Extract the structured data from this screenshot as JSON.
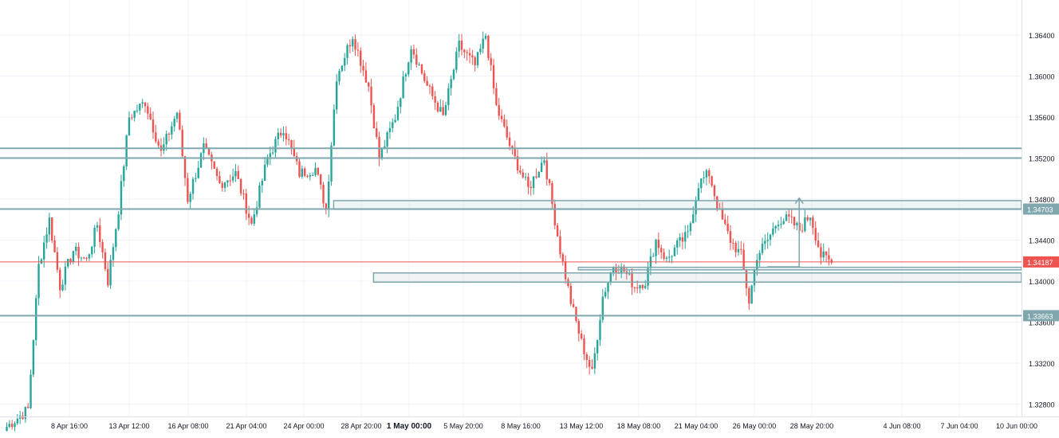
{
  "chart_data": {
    "type": "candlestick",
    "title": "",
    "xlabel": "",
    "ylabel": "",
    "grid": true,
    "ylim": [
      1.325,
      1.3675
    ],
    "y_ticks": [
      "1.36400",
      "1.36000",
      "1.35600",
      "1.35200",
      "1.34800",
      "1.34400",
      "1.34000",
      "1.33600",
      "1.33200",
      "1.32800"
    ],
    "x_ticks": [
      "8 Apr 16:00",
      "13 Apr 12:00",
      "16 Apr 08:00",
      "21 Apr 04:00",
      "24 Apr 00:00",
      "28 Apr 20:00",
      "1 May 00:00",
      "5 May 20:00",
      "8 May 16:00",
      "13 May 12:00",
      "18 May 08:00",
      "21 May 04:00",
      "26 May 00:00",
      "28 May 20:00",
      "4 Jun 08:00",
      "7 Jun 04:00",
      "10 Jun 00:00"
    ],
    "x_ticks_bold": "1 May 00:00",
    "price_labels": {
      "current": "1.34187",
      "level_upper": "1.34703",
      "level_lower": "1.33663"
    },
    "horizontal_levels": [
      1.35295,
      1.352,
      1.3479,
      1.34703,
      1.34187,
      1.3412,
      1.33663
    ],
    "rectangles": [
      {
        "from_candle": 123,
        "to_candle": 335,
        "top": 1.34785,
        "bottom": 1.347
      },
      {
        "from_candle": 138,
        "to_candle": 335,
        "top": 1.3408,
        "bottom": 1.3399
      },
      {
        "from_candle": 215,
        "to_candle": 335,
        "top": 1.34135,
        "bottom": 1.3411
      }
    ],
    "arrow": {
      "x_candle": 298,
      "from": 1.3414,
      "to": 1.3481
    },
    "colors": {
      "up": "#26a69a",
      "down": "#ef5350",
      "line": "#7fa7ad",
      "current": "#ef5350",
      "grid": "#f0f3fa"
    },
    "anchors": [
      {
        "i": 0,
        "p": 1.3258
      },
      {
        "i": 8,
        "p": 1.3275
      },
      {
        "i": 12,
        "p": 1.3415
      },
      {
        "i": 16,
        "p": 1.346
      },
      {
        "i": 20,
        "p": 1.3395
      },
      {
        "i": 25,
        "p": 1.343
      },
      {
        "i": 30,
        "p": 1.342
      },
      {
        "i": 34,
        "p": 1.3455
      },
      {
        "i": 38,
        "p": 1.34
      },
      {
        "i": 42,
        "p": 1.347
      },
      {
        "i": 46,
        "p": 1.356
      },
      {
        "i": 52,
        "p": 1.3575
      },
      {
        "i": 58,
        "p": 1.3525
      },
      {
        "i": 64,
        "p": 1.3565
      },
      {
        "i": 68,
        "p": 1.348
      },
      {
        "i": 74,
        "p": 1.353
      },
      {
        "i": 80,
        "p": 1.3495
      },
      {
        "i": 86,
        "p": 1.3505
      },
      {
        "i": 92,
        "p": 1.3455
      },
      {
        "i": 98,
        "p": 1.352
      },
      {
        "i": 104,
        "p": 1.355
      },
      {
        "i": 110,
        "p": 1.3505
      },
      {
        "i": 116,
        "p": 1.351
      },
      {
        "i": 120,
        "p": 1.347
      },
      {
        "i": 124,
        "p": 1.36
      },
      {
        "i": 130,
        "p": 1.364
      },
      {
        "i": 136,
        "p": 1.359
      },
      {
        "i": 140,
        "p": 1.352
      },
      {
        "i": 146,
        "p": 1.356
      },
      {
        "i": 152,
        "p": 1.363
      },
      {
        "i": 158,
        "p": 1.359
      },
      {
        "i": 164,
        "p": 1.356
      },
      {
        "i": 170,
        "p": 1.363
      },
      {
        "i": 176,
        "p": 1.361
      },
      {
        "i": 180,
        "p": 1.364
      },
      {
        "i": 184,
        "p": 1.357
      },
      {
        "i": 190,
        "p": 1.3525
      },
      {
        "i": 196,
        "p": 1.349
      },
      {
        "i": 202,
        "p": 1.352
      },
      {
        "i": 208,
        "p": 1.343
      },
      {
        "i": 212,
        "p": 1.338
      },
      {
        "i": 216,
        "p": 1.334
      },
      {
        "i": 220,
        "p": 1.331
      },
      {
        "i": 224,
        "p": 1.3385
      },
      {
        "i": 228,
        "p": 1.3415
      },
      {
        "i": 232,
        "p": 1.341
      },
      {
        "i": 236,
        "p": 1.3395
      },
      {
        "i": 240,
        "p": 1.34
      },
      {
        "i": 244,
        "p": 1.344
      },
      {
        "i": 248,
        "p": 1.342
      },
      {
        "i": 252,
        "p": 1.3435
      },
      {
        "i": 256,
        "p": 1.3445
      },
      {
        "i": 260,
        "p": 1.3495
      },
      {
        "i": 264,
        "p": 1.3505
      },
      {
        "i": 268,
        "p": 1.3465
      },
      {
        "i": 272,
        "p": 1.344
      },
      {
        "i": 276,
        "p": 1.3425
      },
      {
        "i": 279,
        "p": 1.338
      },
      {
        "i": 282,
        "p": 1.3425
      },
      {
        "i": 286,
        "p": 1.344
      },
      {
        "i": 290,
        "p": 1.346
      },
      {
        "i": 294,
        "p": 1.346
      },
      {
        "i": 298,
        "p": 1.345
      },
      {
        "i": 302,
        "p": 1.3465
      },
      {
        "i": 306,
        "p": 1.3425
      },
      {
        "i": 310,
        "p": 1.3418
      }
    ]
  }
}
